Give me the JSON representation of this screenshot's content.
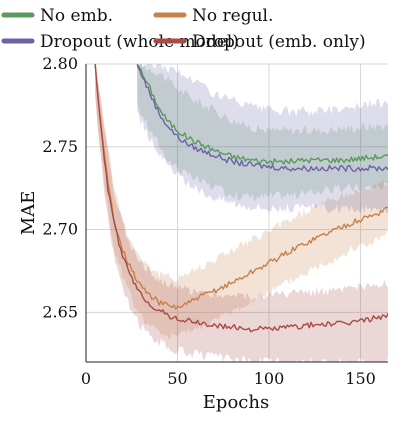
{
  "chart_data": {
    "type": "line",
    "title": "",
    "xlabel": "Epochs",
    "ylabel": "MAE",
    "xlim": [
      0,
      165
    ],
    "ylim": [
      2.62,
      2.8
    ],
    "xticks": [
      0,
      50,
      100,
      150
    ],
    "yticks": [
      2.65,
      2.7,
      2.75,
      2.8
    ],
    "xtick_labels": [
      "0",
      "50",
      "100",
      "150"
    ],
    "ytick_labels": [
      "2.65",
      "2.70",
      "2.75",
      "2.80"
    ],
    "grid": true,
    "legend_position": "top",
    "legend_columns": 2,
    "series": [
      {
        "name": "No emb.",
        "color": "#5a9a5a",
        "mean": [
          [
            28,
            2.8
          ],
          [
            35,
            2.785
          ],
          [
            40,
            2.773
          ],
          [
            45,
            2.765
          ],
          [
            50,
            2.76
          ],
          [
            55,
            2.756
          ],
          [
            60,
            2.753
          ],
          [
            70,
            2.748
          ],
          [
            80,
            2.744
          ],
          [
            90,
            2.742
          ],
          [
            100,
            2.741
          ],
          [
            110,
            2.741
          ],
          [
            120,
            2.742
          ],
          [
            130,
            2.742
          ],
          [
            140,
            2.742
          ],
          [
            150,
            2.743
          ],
          [
            160,
            2.744
          ],
          [
            165,
            2.744
          ]
        ],
        "lower": [
          [
            28,
            2.775
          ],
          [
            35,
            2.76
          ],
          [
            45,
            2.742
          ],
          [
            55,
            2.733
          ],
          [
            65,
            2.728
          ],
          [
            75,
            2.723
          ],
          [
            85,
            2.72
          ],
          [
            100,
            2.72
          ],
          [
            115,
            2.721
          ],
          [
            130,
            2.724
          ],
          [
            145,
            2.725
          ],
          [
            165,
            2.726
          ]
        ],
        "upper": [
          [
            28,
            2.8
          ],
          [
            40,
            2.795
          ],
          [
            50,
            2.785
          ],
          [
            60,
            2.778
          ],
          [
            70,
            2.772
          ],
          [
            80,
            2.766
          ],
          [
            90,
            2.762
          ],
          [
            100,
            2.76
          ],
          [
            115,
            2.76
          ],
          [
            130,
            2.76
          ],
          [
            150,
            2.762
          ],
          [
            165,
            2.763
          ]
        ]
      },
      {
        "name": "No regul.",
        "color": "#c8804a",
        "mean": [
          [
            5,
            2.8
          ],
          [
            8,
            2.765
          ],
          [
            10,
            2.745
          ],
          [
            12,
            2.728
          ],
          [
            15,
            2.708
          ],
          [
            20,
            2.688
          ],
          [
            25,
            2.675
          ],
          [
            30,
            2.666
          ],
          [
            35,
            2.66
          ],
          [
            40,
            2.656
          ],
          [
            45,
            2.654
          ],
          [
            50,
            2.653
          ],
          [
            55,
            2.655
          ],
          [
            60,
            2.658
          ],
          [
            70,
            2.663
          ],
          [
            80,
            2.668
          ],
          [
            90,
            2.674
          ],
          [
            100,
            2.68
          ],
          [
            110,
            2.686
          ],
          [
            120,
            2.692
          ],
          [
            130,
            2.697
          ],
          [
            140,
            2.702
          ],
          [
            150,
            2.706
          ],
          [
            160,
            2.71
          ],
          [
            165,
            2.714
          ]
        ],
        "lower": [
          [
            5,
            2.78
          ],
          [
            10,
            2.728
          ],
          [
            15,
            2.69
          ],
          [
            20,
            2.672
          ],
          [
            25,
            2.658
          ],
          [
            30,
            2.648
          ],
          [
            35,
            2.642
          ],
          [
            40,
            2.638
          ],
          [
            45,
            2.636
          ],
          [
            50,
            2.636
          ],
          [
            60,
            2.64
          ],
          [
            70,
            2.645
          ],
          [
            80,
            2.651
          ],
          [
            90,
            2.656
          ],
          [
            100,
            2.662
          ],
          [
            110,
            2.668
          ],
          [
            120,
            2.674
          ],
          [
            130,
            2.68
          ],
          [
            140,
            2.685
          ],
          [
            150,
            2.69
          ],
          [
            160,
            2.694
          ],
          [
            165,
            2.698
          ]
        ],
        "upper": [
          [
            5,
            2.8
          ],
          [
            10,
            2.765
          ],
          [
            15,
            2.728
          ],
          [
            20,
            2.705
          ],
          [
            25,
            2.692
          ],
          [
            30,
            2.683
          ],
          [
            35,
            2.677
          ],
          [
            40,
            2.673
          ],
          [
            45,
            2.671
          ],
          [
            50,
            2.671
          ],
          [
            60,
            2.676
          ],
          [
            70,
            2.682
          ],
          [
            80,
            2.688
          ],
          [
            90,
            2.693
          ],
          [
            100,
            2.699
          ],
          [
            110,
            2.705
          ],
          [
            120,
            2.711
          ],
          [
            130,
            2.716
          ],
          [
            140,
            2.72
          ],
          [
            150,
            2.724
          ],
          [
            160,
            2.728
          ],
          [
            165,
            2.73
          ]
        ]
      },
      {
        "name": "Dropout (whole model)",
        "color": "#6b62a8",
        "mean": [
          [
            28,
            2.8
          ],
          [
            35,
            2.782
          ],
          [
            40,
            2.77
          ],
          [
            45,
            2.762
          ],
          [
            50,
            2.756
          ],
          [
            55,
            2.752
          ],
          [
            60,
            2.749
          ],
          [
            70,
            2.745
          ],
          [
            80,
            2.741
          ],
          [
            90,
            2.739
          ],
          [
            100,
            2.738
          ],
          [
            110,
            2.737
          ],
          [
            120,
            2.737
          ],
          [
            130,
            2.737
          ],
          [
            140,
            2.737
          ],
          [
            150,
            2.737
          ],
          [
            160,
            2.737
          ],
          [
            165,
            2.737
          ]
        ],
        "lower": [
          [
            28,
            2.77
          ],
          [
            35,
            2.755
          ],
          [
            45,
            2.738
          ],
          [
            55,
            2.728
          ],
          [
            65,
            2.722
          ],
          [
            75,
            2.718
          ],
          [
            85,
            2.715
          ],
          [
            100,
            2.713
          ],
          [
            115,
            2.713
          ],
          [
            130,
            2.713
          ],
          [
            145,
            2.712
          ],
          [
            165,
            2.712
          ]
        ],
        "upper": [
          [
            28,
            2.8
          ],
          [
            40,
            2.8
          ],
          [
            50,
            2.795
          ],
          [
            60,
            2.79
          ],
          [
            70,
            2.782
          ],
          [
            80,
            2.778
          ],
          [
            90,
            2.774
          ],
          [
            100,
            2.772
          ],
          [
            115,
            2.771
          ],
          [
            130,
            2.772
          ],
          [
            150,
            2.775
          ],
          [
            165,
            2.777
          ]
        ]
      },
      {
        "name": "Dropout (emb. only)",
        "color": "#a84a48",
        "mean": [
          [
            5,
            2.8
          ],
          [
            8,
            2.763
          ],
          [
            10,
            2.742
          ],
          [
            12,
            2.725
          ],
          [
            15,
            2.705
          ],
          [
            20,
            2.684
          ],
          [
            25,
            2.67
          ],
          [
            30,
            2.661
          ],
          [
            35,
            2.655
          ],
          [
            40,
            2.651
          ],
          [
            45,
            2.648
          ],
          [
            50,
            2.646
          ],
          [
            60,
            2.644
          ],
          [
            70,
            2.642
          ],
          [
            80,
            2.641
          ],
          [
            90,
            2.64
          ],
          [
            100,
            2.64
          ],
          [
            110,
            2.641
          ],
          [
            120,
            2.642
          ],
          [
            130,
            2.643
          ],
          [
            140,
            2.643
          ],
          [
            150,
            2.645
          ],
          [
            160,
            2.647
          ],
          [
            165,
            2.649
          ]
        ],
        "lower": [
          [
            5,
            2.78
          ],
          [
            10,
            2.722
          ],
          [
            15,
            2.685
          ],
          [
            20,
            2.664
          ],
          [
            25,
            2.65
          ],
          [
            30,
            2.642
          ],
          [
            35,
            2.636
          ],
          [
            40,
            2.632
          ],
          [
            45,
            2.629
          ],
          [
            50,
            2.627
          ],
          [
            60,
            2.625
          ],
          [
            70,
            2.623
          ],
          [
            80,
            2.622
          ],
          [
            90,
            2.621
          ],
          [
            100,
            2.62
          ],
          [
            110,
            2.62
          ],
          [
            120,
            2.62
          ],
          [
            135,
            2.62
          ],
          [
            150,
            2.62
          ],
          [
            165,
            2.62
          ]
        ],
        "upper": [
          [
            5,
            2.8
          ],
          [
            10,
            2.762
          ],
          [
            15,
            2.725
          ],
          [
            20,
            2.704
          ],
          [
            25,
            2.69
          ],
          [
            30,
            2.681
          ],
          [
            35,
            2.674
          ],
          [
            40,
            2.67
          ],
          [
            45,
            2.667
          ],
          [
            50,
            2.665
          ],
          [
            60,
            2.663
          ],
          [
            70,
            2.661
          ],
          [
            80,
            2.66
          ],
          [
            90,
            2.66
          ],
          [
            100,
            2.66
          ],
          [
            110,
            2.661
          ],
          [
            120,
            2.662
          ],
          [
            130,
            2.663
          ],
          [
            140,
            2.663
          ],
          [
            150,
            2.665
          ],
          [
            160,
            2.666
          ],
          [
            165,
            2.667
          ]
        ]
      }
    ]
  }
}
